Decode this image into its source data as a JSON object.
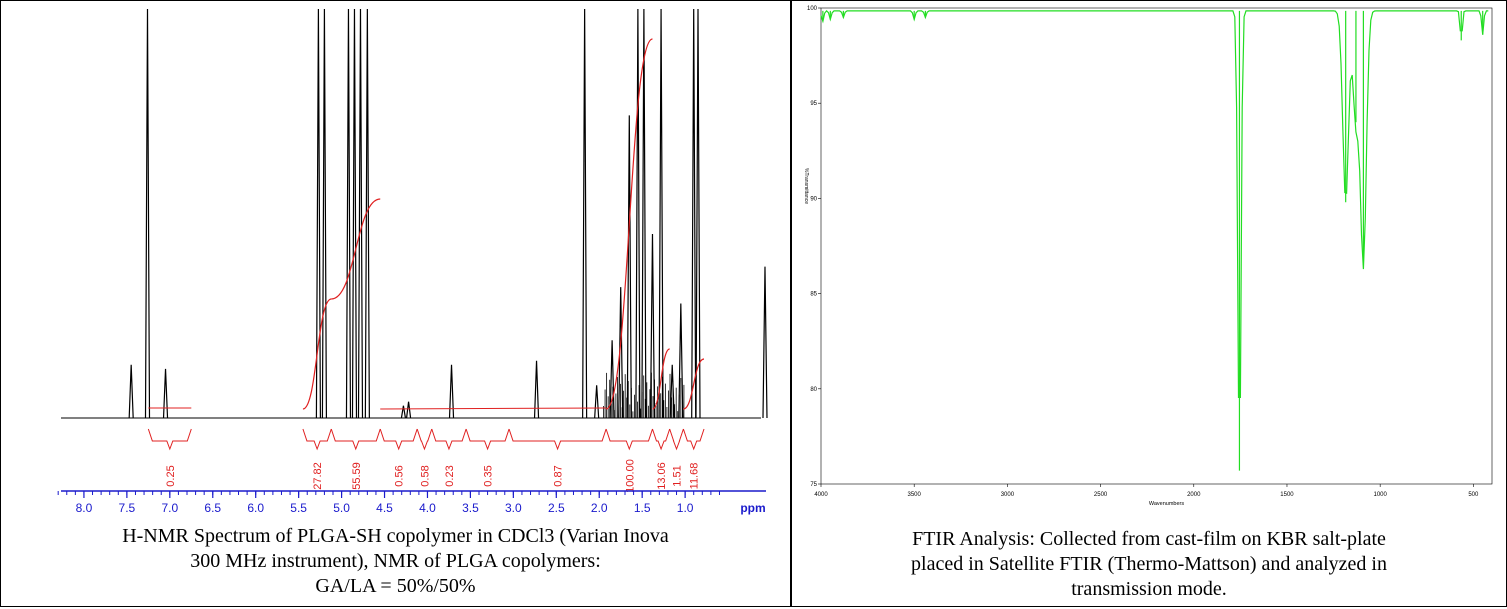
{
  "nmr": {
    "caption_lines": [
      "H-NMR Spectrum of PLGA-SH copolymer in CDCl3 (Varian Inova",
      "300 MHz instrument), NMR of PLGA copolymers:",
      "GA/LA = 50%/50%"
    ],
    "chart_data": {
      "type": "line",
      "xlabel": "ppm",
      "xlim": [
        8.5,
        0.0
      ],
      "x_reversed": true,
      "xticks": [
        8.0,
        7.5,
        7.0,
        6.5,
        6.0,
        5.5,
        5.0,
        4.5,
        4.0,
        3.5,
        3.0,
        2.5,
        2.0,
        1.5,
        1.0
      ],
      "xtick_labels": [
        "8.0",
        "7.5",
        "7.0",
        "6.5",
        "6.0",
        "5.5",
        "5.0",
        "4.5",
        "4.0",
        "3.5",
        "3.0",
        "2.5",
        "2.0",
        "1.5",
        "1.0"
      ],
      "peaks": [
        {
          "ppm": 7.45,
          "height": 0.13
        },
        {
          "ppm": 7.26,
          "height": 1.0
        },
        {
          "ppm": 7.05,
          "height": 0.12
        },
        {
          "ppm": 5.27,
          "height": 1.0
        },
        {
          "ppm": 5.2,
          "height": 1.0
        },
        {
          "ppm": 4.92,
          "height": 1.0
        },
        {
          "ppm": 4.85,
          "height": 1.0
        },
        {
          "ppm": 4.78,
          "height": 1.0
        },
        {
          "ppm": 4.7,
          "height": 1.0
        },
        {
          "ppm": 4.28,
          "height": 0.03
        },
        {
          "ppm": 4.22,
          "height": 0.04
        },
        {
          "ppm": 3.72,
          "height": 0.13
        },
        {
          "ppm": 2.73,
          "height": 0.14
        },
        {
          "ppm": 2.17,
          "height": 1.0
        },
        {
          "ppm": 2.03,
          "height": 0.08
        },
        {
          "ppm": 1.85,
          "height": 0.19
        },
        {
          "ppm": 1.75,
          "height": 0.32
        },
        {
          "ppm": 1.65,
          "height": 0.74
        },
        {
          "ppm": 1.55,
          "height": 1.0
        },
        {
          "ppm": 1.48,
          "height": 1.0
        },
        {
          "ppm": 1.38,
          "height": 0.45
        },
        {
          "ppm": 1.28,
          "height": 1.0
        },
        {
          "ppm": 1.15,
          "height": 0.13
        },
        {
          "ppm": 1.05,
          "height": 0.28
        },
        {
          "ppm": 0.9,
          "height": 1.0
        },
        {
          "ppm": 0.85,
          "height": 1.0
        },
        {
          "ppm": 0.07,
          "height": 0.37
        }
      ],
      "integrals": [
        {
          "label": "0.25",
          "from": 7.25,
          "to": 6.75
        },
        {
          "label": "27.82",
          "from": 5.45,
          "to": 5.12
        },
        {
          "label": "55.59",
          "from": 5.12,
          "to": 4.55
        },
        {
          "label": "0.56",
          "from": 4.55,
          "to": 4.12
        },
        {
          "label": "0.58",
          "from": 4.12,
          "to": 3.95
        },
        {
          "label": "0.23",
          "from": 3.95,
          "to": 3.55
        },
        {
          "label": "0.35",
          "from": 3.55,
          "to": 3.05
        },
        {
          "label": "0.87",
          "from": 3.05,
          "to": 1.92
        },
        {
          "label": "100.00",
          "from": 1.92,
          "to": 1.38
        },
        {
          "label": "13.06",
          "from": 1.38,
          "to": 1.18
        },
        {
          "label": "1.51",
          "from": 1.18,
          "to": 1.02
        },
        {
          "label": "11.68",
          "from": 1.02,
          "to": 0.78
        }
      ]
    },
    "colors": {
      "spectrum": "#000000",
      "integral": "#e02020",
      "axis": "#1a1acc"
    }
  },
  "ftir": {
    "caption_lines": [
      "FTIR Analysis: Collected from cast-film on KBR salt-plate",
      "placed in Satellite FTIR (Thermo-Mattson) and analyzed in",
      "transmission mode."
    ],
    "chart_data": {
      "type": "line",
      "xlabel": "Wavenumbers",
      "ylabel": "%Transmittance",
      "xlim": [
        4000,
        400
      ],
      "x_reversed": true,
      "ylim": [
        75,
        100
      ],
      "xticks": [
        4000,
        3500,
        3000,
        2500,
        2000,
        1500,
        1000,
        500
      ],
      "xtick_labels": [
        "4000",
        "3500",
        "3000",
        "2500",
        "2000",
        "1500",
        "1000",
        "500"
      ],
      "yticks": [
        75,
        80,
        85,
        90,
        95,
        100
      ],
      "ytick_labels": [
        "75",
        "80",
        "85",
        "90",
        "95",
        "100"
      ],
      "bands": [
        {
          "wavenumber": 3990,
          "min_t": 99.3
        },
        {
          "wavenumber": 3950,
          "min_t": 99.4
        },
        {
          "wavenumber": 3880,
          "min_t": 99.5
        },
        {
          "wavenumber": 3500,
          "min_t": 99.4
        },
        {
          "wavenumber": 3440,
          "min_t": 99.5
        },
        {
          "wavenumber": 1755,
          "min_t": 75.7
        },
        {
          "wavenumber": 1185,
          "min_t": 89.8
        },
        {
          "wavenumber": 1130,
          "min_t": 94.0
        },
        {
          "wavenumber": 1090,
          "min_t": 86.5
        },
        {
          "wavenumber": 565,
          "min_t": 98.3
        },
        {
          "wavenumber": 450,
          "min_t": 98.6
        }
      ]
    },
    "colors": {
      "trace": "#22dd22",
      "axis": "#000000"
    }
  }
}
